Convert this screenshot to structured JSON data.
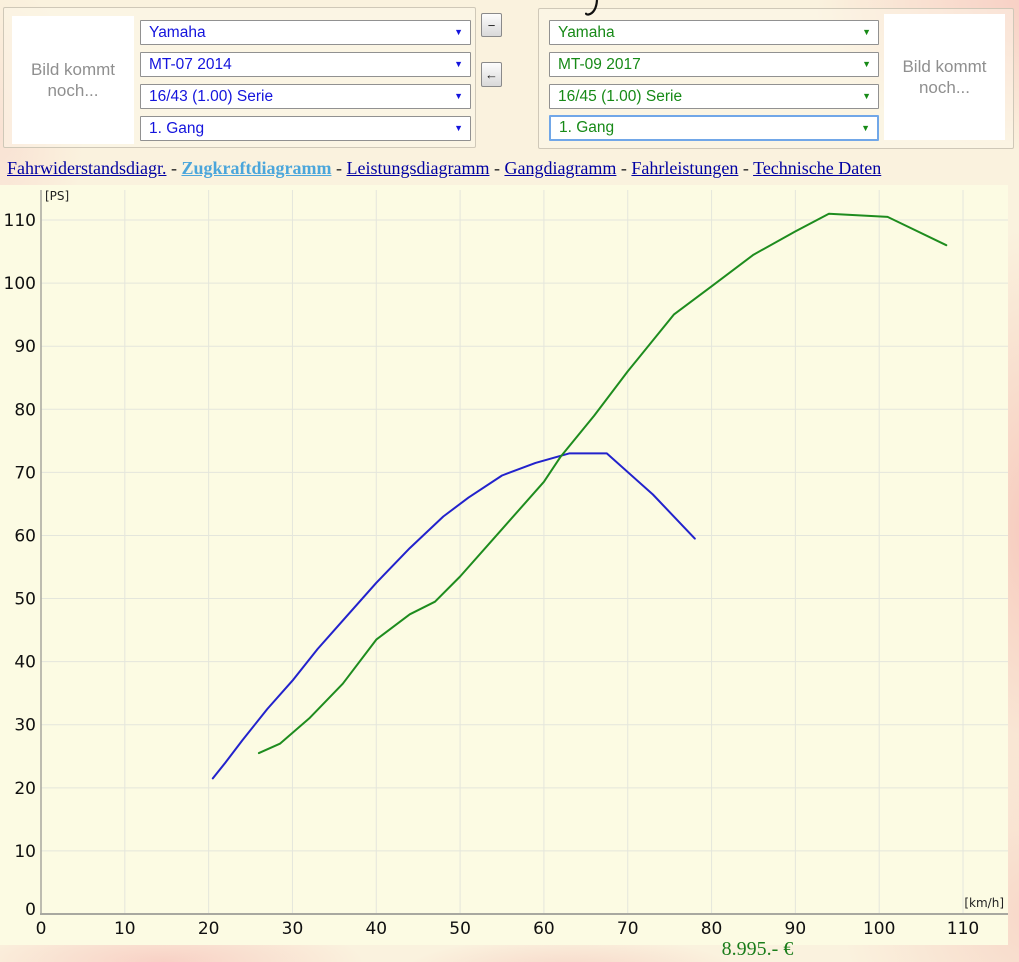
{
  "colors": {
    "page_bg": "#FAF2DE",
    "chart_bg": "#FCFBE3",
    "grid": "#E4E6DC",
    "axis": "#A8A8A0",
    "left_accent": "#1414DD",
    "right_accent": "#178A17",
    "blue_line": "#2222CC",
    "green_line": "#1E8C1E",
    "nav_link": "#0000A2",
    "nav_active": "#4BA6DB",
    "price": "#1B7D1B"
  },
  "panels": {
    "left": {
      "image_placeholder": "Bild kommt noch...",
      "accent_color": "#1414DD",
      "selects": [
        {
          "id": "make",
          "value": "Yamaha"
        },
        {
          "id": "model",
          "value": "MT-07 2014"
        },
        {
          "id": "gearing",
          "value": "16/43 (1.00) Serie"
        },
        {
          "id": "gear",
          "value": "1. Gang"
        }
      ]
    },
    "right": {
      "image_placeholder": "Bild kommt noch...",
      "accent_color": "#178A17",
      "selects": [
        {
          "id": "make",
          "value": "Yamaha"
        },
        {
          "id": "model",
          "value": "MT-09 2017"
        },
        {
          "id": "gearing",
          "value": "16/45 (1.00) Serie"
        },
        {
          "id": "gear",
          "value": "1. Gang",
          "focused": true
        }
      ]
    }
  },
  "middle_buttons": {
    "minus_label": "−",
    "arrow_label": "←"
  },
  "nav": {
    "separator": " - ",
    "links": [
      {
        "label": "Fahrwiderstandsdiagr.",
        "active": false
      },
      {
        "label": "Zugkraftdiagramm",
        "active": true
      },
      {
        "label": "Leistungsdiagramm",
        "active": false
      },
      {
        "label": "Gangdiagramm",
        "active": false
      },
      {
        "label": "Fahrleistungen",
        "active": false
      },
      {
        "label": "Technische Daten",
        "active": false
      }
    ]
  },
  "price_label": "8.995.- €",
  "chart_data": {
    "type": "line",
    "title": "",
    "xlabel": "[km/h]",
    "ylabel": "[PS]",
    "xlim": [
      0,
      115.4
    ],
    "ylim": [
      0,
      115.5
    ],
    "x_ticks": [
      0,
      10,
      20,
      30,
      40,
      50,
      60,
      70,
      80,
      90,
      100,
      110
    ],
    "y_ticks": [
      0,
      10,
      20,
      30,
      40,
      50,
      60,
      70,
      80,
      90,
      100,
      110
    ],
    "grid": true,
    "legend_position": "none",
    "series": [
      {
        "name": "Yamaha MT-07 2014, 16/43 (1.00) Serie, 1. Gang",
        "color": "#2222CC",
        "points": [
          [
            20.5,
            21.5
          ],
          [
            22,
            24
          ],
          [
            24,
            27.5
          ],
          [
            27,
            32.5
          ],
          [
            30,
            37
          ],
          [
            33,
            42
          ],
          [
            36,
            46.5
          ],
          [
            40,
            52.5
          ],
          [
            44,
            58
          ],
          [
            48,
            63
          ],
          [
            51,
            66
          ],
          [
            55,
            69.5
          ],
          [
            59,
            71.5
          ],
          [
            63,
            73
          ],
          [
            67.5,
            73
          ],
          [
            73,
            66.5
          ],
          [
            78,
            59.5
          ]
        ]
      },
      {
        "name": "Yamaha MT-09 2017, 16/45 (1.00) Serie, 1. Gang",
        "color": "#1E8C1E",
        "points": [
          [
            26,
            25.5
          ],
          [
            28.5,
            27
          ],
          [
            32,
            31
          ],
          [
            36,
            36.5
          ],
          [
            40,
            43.5
          ],
          [
            44,
            47.5
          ],
          [
            47,
            49.5
          ],
          [
            50,
            53.5
          ],
          [
            55,
            61
          ],
          [
            60,
            68.5
          ],
          [
            62,
            72.5
          ],
          [
            66,
            79
          ],
          [
            70,
            86
          ],
          [
            75.5,
            95
          ],
          [
            80,
            99.5
          ],
          [
            85,
            104.5
          ],
          [
            90,
            108.2
          ],
          [
            94,
            111
          ],
          [
            101,
            110.5
          ],
          [
            108,
            106
          ]
        ]
      }
    ]
  }
}
